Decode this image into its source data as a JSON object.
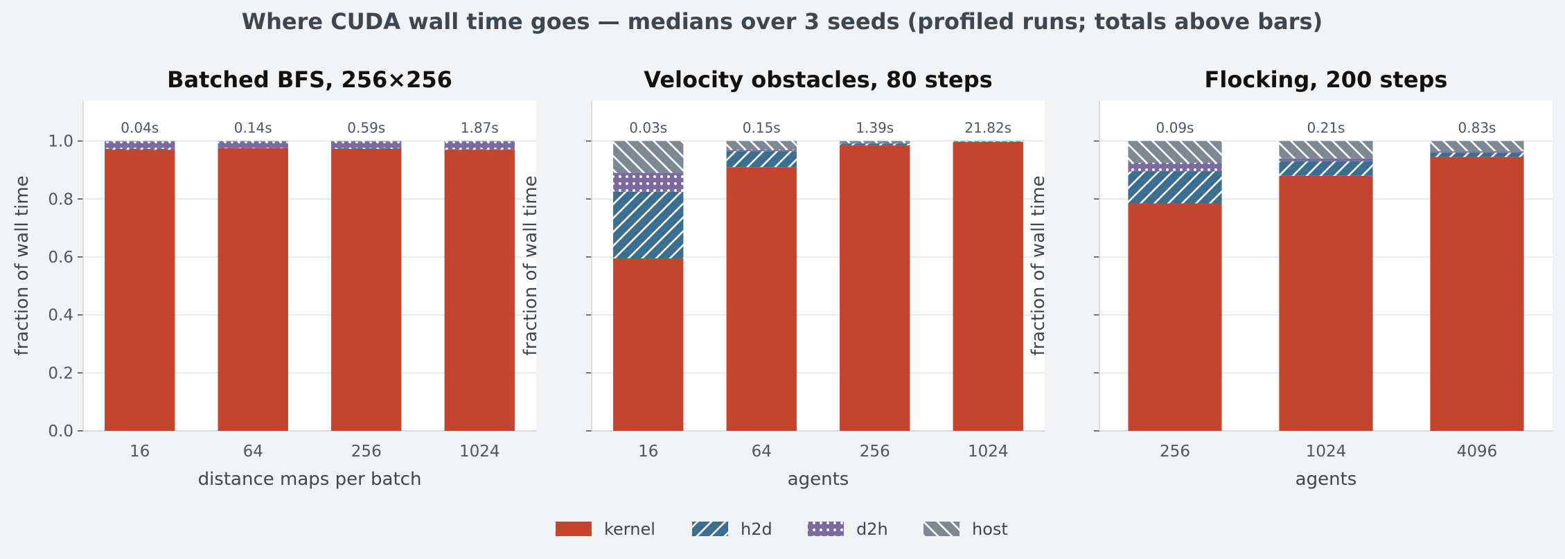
{
  "suptitle": "Where CUDA wall time goes — medians over 3 seeds (profiled runs; totals above bars)",
  "components": [
    {
      "key": "kernel",
      "label": "kernel",
      "color": "#c2452d",
      "pattern": "solid"
    },
    {
      "key": "h2d",
      "label": "h2d",
      "color": "#3b6e8f",
      "pattern": "diagonal-hatch"
    },
    {
      "key": "d2h",
      "label": "d2h",
      "color": "#7a6aa0",
      "pattern": "dots"
    },
    {
      "key": "host",
      "label": "host",
      "color": "#7c8893",
      "pattern": "backslash-hatch"
    }
  ],
  "chart_data": [
    {
      "type": "bar",
      "stacked": true,
      "title": "Batched BFS, 256×256",
      "xlabel": "distance maps per batch",
      "ylabel": "fraction of wall time",
      "ylim": [
        0,
        1.14
      ],
      "yticks": [
        "0.0",
        "0.2",
        "0.4",
        "0.6",
        "0.8",
        "1.0"
      ],
      "show_ytick_labels": true,
      "categories": [
        "16",
        "64",
        "256",
        "1024"
      ],
      "totals": [
        "0.04s",
        "0.14s",
        "0.59s",
        "1.87s"
      ],
      "series": [
        {
          "name": "kernel",
          "values": [
            0.97,
            0.975,
            0.973,
            0.97
          ]
        },
        {
          "name": "h2d",
          "values": [
            0.003,
            0.002,
            0.002,
            0.002
          ]
        },
        {
          "name": "d2h",
          "values": [
            0.025,
            0.021,
            0.023,
            0.026
          ]
        },
        {
          "name": "host",
          "values": [
            0.002,
            0.002,
            0.002,
            0.002
          ]
        }
      ]
    },
    {
      "type": "bar",
      "stacked": true,
      "title": "Velocity obstacles, 80 steps",
      "xlabel": "agents",
      "ylabel": "fraction of wall time",
      "ylim": [
        0,
        1.14
      ],
      "yticks": [
        "0.0",
        "0.2",
        "0.4",
        "0.6",
        "0.8",
        "1.0"
      ],
      "show_ytick_labels": false,
      "categories": [
        "16",
        "64",
        "256",
        "1024"
      ],
      "totals": [
        "0.03s",
        "0.15s",
        "1.39s",
        "21.82s"
      ],
      "series": [
        {
          "name": "kernel",
          "values": [
            0.595,
            0.91,
            0.985,
            0.997
          ]
        },
        {
          "name": "h2d",
          "values": [
            0.23,
            0.055,
            0.006,
            0.001
          ]
        },
        {
          "name": "d2h",
          "values": [
            0.065,
            0.005,
            0.002,
            0.001
          ]
        },
        {
          "name": "host",
          "values": [
            0.11,
            0.03,
            0.007,
            0.001
          ]
        }
      ]
    },
    {
      "type": "bar",
      "stacked": true,
      "title": "Flocking, 200 steps",
      "xlabel": "agents",
      "ylabel": "fraction of wall time",
      "ylim": [
        0,
        1.14
      ],
      "yticks": [
        "0.0",
        "0.2",
        "0.4",
        "0.6",
        "0.8",
        "1.0"
      ],
      "show_ytick_labels": false,
      "categories": [
        "256",
        "1024",
        "4096"
      ],
      "totals": [
        "0.09s",
        "0.21s",
        "0.83s"
      ],
      "series": [
        {
          "name": "kernel",
          "values": [
            0.785,
            0.88,
            0.945
          ]
        },
        {
          "name": "h2d",
          "values": [
            0.11,
            0.05,
            0.015
          ]
        },
        {
          "name": "d2h",
          "values": [
            0.03,
            0.01,
            0.005
          ]
        },
        {
          "name": "host",
          "values": [
            0.075,
            0.06,
            0.035
          ]
        }
      ]
    }
  ]
}
